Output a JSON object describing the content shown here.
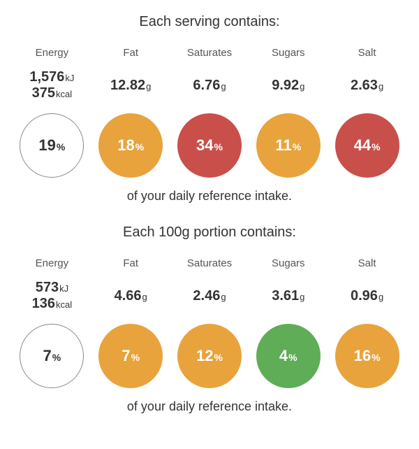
{
  "colors": {
    "amber": "#e8a33d",
    "red": "#c94f4a",
    "green": "#5fad56",
    "outline_border": "#888888",
    "text": "#333333",
    "background": "#ffffff"
  },
  "panels": [
    {
      "title": "Each serving contains:",
      "footer": "of your daily reference intake.",
      "items": [
        {
          "label": "Energy",
          "values": [
            {
              "num": "1,576",
              "unit": "kJ"
            },
            {
              "num": "375",
              "unit": "kcal"
            }
          ],
          "pct": "19",
          "circle_fill": null
        },
        {
          "label": "Fat",
          "values": [
            {
              "num": "12.82",
              "unit": "g"
            }
          ],
          "pct": "18",
          "circle_fill": "#e8a33d"
        },
        {
          "label": "Saturates",
          "values": [
            {
              "num": "6.76",
              "unit": "g"
            }
          ],
          "pct": "34",
          "circle_fill": "#c94f4a"
        },
        {
          "label": "Sugars",
          "values": [
            {
              "num": "9.92",
              "unit": "g"
            }
          ],
          "pct": "11",
          "circle_fill": "#e8a33d"
        },
        {
          "label": "Salt",
          "values": [
            {
              "num": "2.63",
              "unit": "g"
            }
          ],
          "pct": "44",
          "circle_fill": "#c94f4a"
        }
      ]
    },
    {
      "title": "Each 100g portion contains:",
      "footer": "of your daily reference intake.",
      "items": [
        {
          "label": "Energy",
          "values": [
            {
              "num": "573",
              "unit": "kJ"
            },
            {
              "num": "136",
              "unit": "kcal"
            }
          ],
          "pct": "7",
          "circle_fill": null
        },
        {
          "label": "Fat",
          "values": [
            {
              "num": "4.66",
              "unit": "g"
            }
          ],
          "pct": "7",
          "circle_fill": "#e8a33d"
        },
        {
          "label": "Saturates",
          "values": [
            {
              "num": "2.46",
              "unit": "g"
            }
          ],
          "pct": "12",
          "circle_fill": "#e8a33d"
        },
        {
          "label": "Sugars",
          "values": [
            {
              "num": "3.61",
              "unit": "g"
            }
          ],
          "pct": "4",
          "circle_fill": "#5fad56"
        },
        {
          "label": "Salt",
          "values": [
            {
              "num": "0.96",
              "unit": "g"
            }
          ],
          "pct": "16",
          "circle_fill": "#e8a33d"
        }
      ]
    }
  ]
}
